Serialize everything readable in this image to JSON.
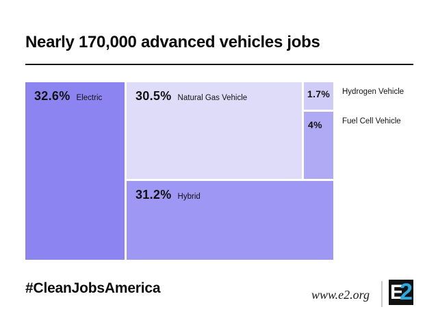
{
  "header": {
    "title": "Nearly 170,000 advanced vehicles jobs"
  },
  "footer": {
    "hashtag": "#CleanJobsAmerica",
    "website": "www.e2.org",
    "logo": {
      "letter_e": "E",
      "numeral_2": "2",
      "accent_color": "#29ABE2",
      "square_color": "#111111"
    }
  },
  "colors": {
    "background": "#ffffff",
    "text": "#111111",
    "rule": "#111111",
    "divider": "#c9c9c9"
  },
  "chart_data": {
    "type": "treemap",
    "title": "Nearly 170,000 advanced vehicles jobs",
    "legend_position": "none",
    "segments": [
      {
        "label": "Electric",
        "value": 32.6,
        "display": "32.6%",
        "color": "#8C85F1",
        "label_position": "inside"
      },
      {
        "label": "Natural Gas Vehicle",
        "value": 30.5,
        "display": "30.5%",
        "color": "#DEDCF9",
        "label_position": "inside"
      },
      {
        "label": "Hydrogen Vehicle",
        "value": 1.7,
        "display": "1.7%",
        "color": "#CFCDF7",
        "label_position": "outside"
      },
      {
        "label": "Fuel Cell Vehicle",
        "value": 4,
        "display": "4%",
        "color": "#B0AAF4",
        "label_position": "outside"
      },
      {
        "label": "Hybrid",
        "value": 31.2,
        "display": "31.2%",
        "color": "#9E97F3",
        "label_position": "inside"
      }
    ]
  }
}
